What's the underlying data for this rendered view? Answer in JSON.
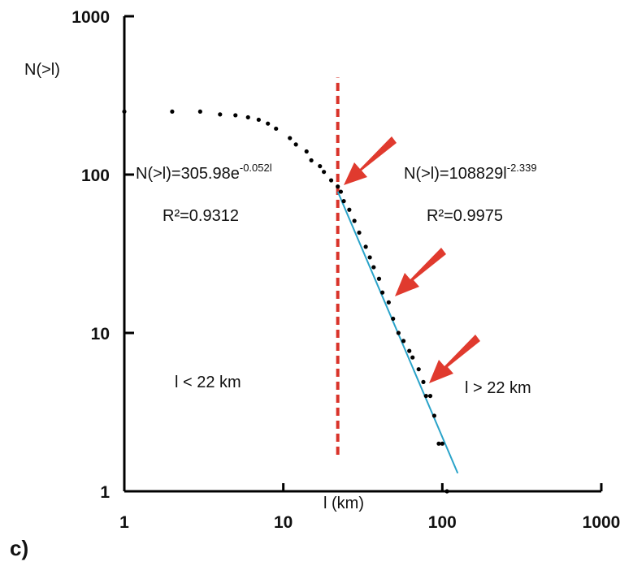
{
  "chart_data": {
    "type": "scatter",
    "log_x": true,
    "log_y": true,
    "x_label": "l (km)",
    "y_label": "N(>l)",
    "panel_label": "c)",
    "xlim": [
      1,
      1000
    ],
    "ylim": [
      1,
      1000
    ],
    "xticks": [
      1,
      10,
      100,
      1000
    ],
    "yticks": [
      1,
      10,
      100,
      1000
    ],
    "series": [
      {
        "color": "#000000",
        "x": [
          1,
          2,
          3,
          4,
          5,
          6,
          7,
          8,
          9,
          11,
          12,
          14,
          15,
          17,
          18,
          20,
          22,
          23,
          24,
          26,
          28,
          30,
          33,
          35,
          37,
          40,
          42,
          46,
          49,
          53,
          57,
          62,
          65,
          71,
          76,
          79,
          84,
          89,
          95,
          100,
          107
        ],
        "values": [
          250,
          250,
          250,
          240,
          237,
          230,
          222,
          210,
          195,
          170,
          155,
          140,
          123,
          113,
          104,
          92,
          84,
          78,
          68,
          60,
          51,
          43,
          35,
          30,
          26,
          22,
          18,
          15.6,
          12.3,
          10,
          8.9,
          7.7,
          7,
          5.9,
          4.9,
          4,
          4,
          3,
          2,
          2,
          1
        ]
      }
    ],
    "fit_line": {
      "color": "#2aa3c9",
      "x": [
        22,
        125
      ],
      "values": [
        78,
        1.3
      ]
    },
    "threshold_line": {
      "color": "#d9332a",
      "x": [
        22,
        22
      ],
      "values": [
        1.7,
        410
      ]
    },
    "annotations": [
      {
        "text": "N(>l)=305.98e",
        "sup": "-0.052l"
      },
      {
        "text": "R²=0.9312"
      },
      {
        "text": "N(>l)=108829l",
        "sup": "-2.339"
      },
      {
        "text": "R²=0.9975"
      },
      {
        "text": "l  < 22 km"
      },
      {
        "text": "l  > 22 km"
      }
    ]
  }
}
